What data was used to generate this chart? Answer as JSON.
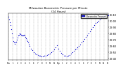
{
  "title": "Milwaukee Barometric Pressure per Minute",
  "subtitle": "(24 Hours)",
  "bg_color": "#ffffff",
  "plot_bg_color": "#ffffff",
  "dot_color": "#0000cc",
  "legend_color": "#0000ff",
  "grid_color": "#aaaaaa",
  "y_min": 29.38,
  "y_max": 30.12,
  "y_ticks": [
    29.4,
    29.5,
    29.6,
    29.7,
    29.8,
    29.9,
    30.0,
    30.1
  ],
  "y_tick_labels": [
    "29.40",
    "29.50",
    "29.60",
    "29.70",
    "29.80",
    "29.90",
    "30.00",
    "30.10"
  ],
  "x_min": 0,
  "x_max": 1440,
  "x_ticks": [
    0,
    60,
    120,
    180,
    240,
    300,
    360,
    420,
    480,
    540,
    600,
    660,
    720,
    780,
    840,
    900,
    960,
    1020,
    1080,
    1140,
    1200,
    1260,
    1320,
    1380,
    1440
  ],
  "x_tick_labels": [
    "12a",
    "1",
    "2",
    "3",
    "4",
    "5",
    "6",
    "7",
    "8",
    "9",
    "10",
    "11",
    "12p",
    "1",
    "2",
    "3",
    "4",
    "5",
    "6",
    "7",
    "8",
    "9",
    "10",
    "11",
    "12"
  ],
  "data_x": [
    0,
    10,
    20,
    30,
    40,
    50,
    60,
    70,
    80,
    90,
    100,
    110,
    120,
    130,
    140,
    150,
    160,
    170,
    180,
    190,
    200,
    210,
    220,
    230,
    240,
    250,
    260,
    270,
    280,
    290,
    300,
    320,
    340,
    360,
    380,
    400,
    420,
    440,
    460,
    480,
    500,
    520,
    540,
    560,
    580,
    600,
    620,
    640,
    660,
    680,
    700,
    720,
    740,
    760,
    780,
    800,
    820,
    840,
    860,
    880,
    900,
    920,
    940,
    960,
    980,
    1000,
    1020,
    1040,
    1060,
    1080,
    1100,
    1120,
    1140,
    1160,
    1180,
    1200,
    1220,
    1240,
    1260,
    1280,
    1300,
    1320,
    1340,
    1360,
    1380,
    1400,
    1420,
    1440
  ],
  "data_y": [
    30.06,
    30.02,
    29.98,
    29.93,
    29.87,
    29.8,
    29.73,
    29.68,
    29.65,
    29.63,
    29.65,
    29.67,
    29.7,
    29.73,
    29.76,
    29.78,
    29.8,
    29.79,
    29.78,
    29.77,
    29.76,
    29.77,
    29.78,
    29.76,
    29.74,
    29.72,
    29.7,
    29.68,
    29.65,
    29.62,
    29.6,
    29.56,
    29.53,
    29.5,
    29.48,
    29.47,
    29.46,
    29.45,
    29.44,
    29.43,
    29.43,
    29.44,
    29.45,
    29.46,
    29.47,
    29.48,
    29.5,
    29.52,
    29.55,
    29.58,
    29.61,
    29.56,
    29.52,
    29.49,
    29.47,
    29.45,
    29.44,
    29.43,
    29.44,
    29.46,
    29.48,
    29.5,
    29.52,
    29.54,
    29.56,
    29.58,
    29.6,
    29.62,
    29.65,
    29.68,
    29.71,
    29.74,
    29.77,
    29.8,
    29.83,
    29.87,
    29.9,
    29.93,
    29.96,
    29.98,
    30.0,
    30.02,
    30.04,
    30.06,
    30.07,
    30.08,
    30.09,
    30.09
  ]
}
